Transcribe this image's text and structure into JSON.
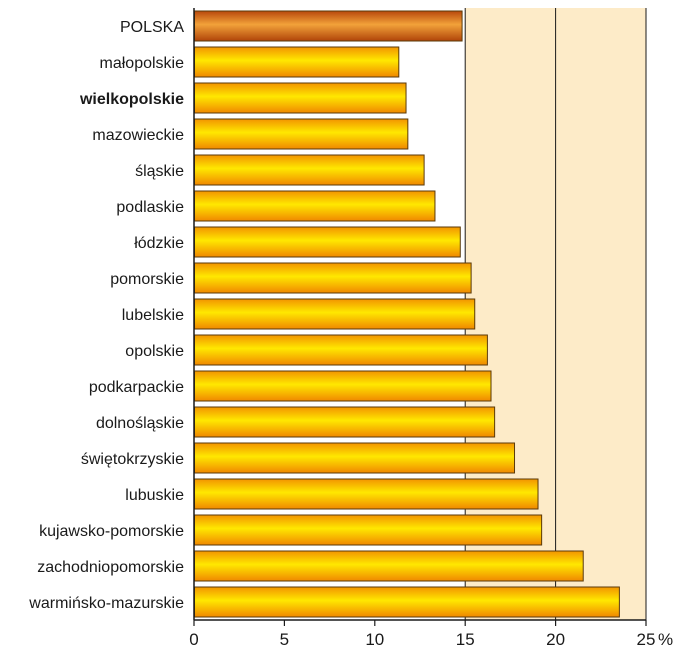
{
  "chart_data": {
    "type": "bar",
    "orientation": "horizontal",
    "categories": [
      "POLSKA",
      "małopolskie",
      "wielkopolskie",
      "mazowieckie",
      "śląskie",
      "podlaskie",
      "łódzkie",
      "pomorskie",
      "lubelskie",
      "opolskie",
      "podkarpackie",
      "dolnośląskie",
      "świętokrzyskie",
      "lubuskie",
      "kujawsko-pomorskie",
      "zachodniopomorskie",
      "warmińsko-mazurskie"
    ],
    "values": [
      14.8,
      11.3,
      11.7,
      11.8,
      12.7,
      13.3,
      14.7,
      15.3,
      15.5,
      16.2,
      16.4,
      16.6,
      17.7,
      19.0,
      19.2,
      21.5,
      23.5
    ],
    "highlight": {
      "POLSKA": "#c8661a"
    },
    "bold_categories": [
      "wielkopolskie"
    ],
    "xlim": [
      0,
      25
    ],
    "xticks": [
      "0",
      "5",
      "10",
      "15",
      "20",
      "25"
    ],
    "x_unit": "%",
    "reference_lines": [
      15,
      20,
      25
    ],
    "shaded_band": [
      15,
      25
    ],
    "grid": false,
    "colors": {
      "bar": "#ffcc00",
      "bar_edge": "#5a3a0a",
      "highlight_bar": "#d06a1e",
      "band": "#fdebc8",
      "ref_line": "#1a1a1a",
      "axis": "#1a1a1a"
    }
  }
}
